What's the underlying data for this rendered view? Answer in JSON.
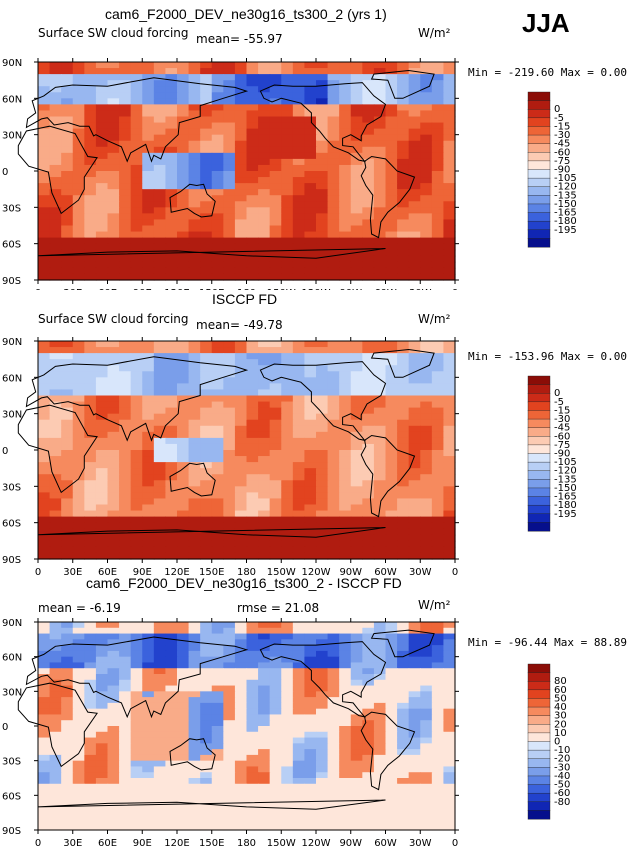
{
  "season": "JJA",
  "colors": {
    "warm": [
      "#8b0d07",
      "#b01c10",
      "#cc2b18",
      "#e2431f",
      "#ee6537",
      "#f68a5e",
      "#f9ab88",
      "#fccbb3",
      "#fee6da"
    ],
    "cool": [
      "#d8e6fb",
      "#b8cff5",
      "#98b7f0",
      "#7a9eea",
      "#5b83e5",
      "#3b62dd",
      "#2242cd",
      "#1026b4",
      "#060f8c"
    ],
    "land": "#000000",
    "ocean_warm_base": "#f3744a"
  },
  "panels": [
    {
      "title": "cam6_F2000_DEV_ne30g16_ts300_2 (yrs 1)",
      "left_text": "Surface SW cloud forcing",
      "center_text": "mean=  -55.97",
      "units": "W/m²",
      "minmax": "Min = -219.60 Max =    0.00",
      "colorbar_labels": [
        "0",
        "-5",
        "-15",
        "-30",
        "-45",
        "-60",
        "-75",
        "-90",
        "-105",
        "-120",
        "-135",
        "-150",
        "-165",
        "-180",
        "-195"
      ]
    },
    {
      "title": "ISCCP FD",
      "left_text": "Surface SW cloud forcing",
      "center_text": "mean=  -49.78",
      "units": "W/m²",
      "minmax": "Min = -153.96 Max =    0.00",
      "colorbar_labels": [
        "0",
        "-5",
        "-15",
        "-30",
        "-45",
        "-60",
        "-75",
        "-90",
        "-105",
        "-120",
        "-135",
        "-150",
        "-165",
        "-180",
        "-195"
      ]
    },
    {
      "title": "cam6_F2000_DEV_ne30g16_ts300_2 - ISCCP FD",
      "left_text": "mean =  -6.19",
      "center_text": "rmse =  21.08",
      "units": "W/m²",
      "minmax": "Min = -96.44 Max =  88.89",
      "colorbar_labels": [
        "80",
        "60",
        "50",
        "40",
        "30",
        "20",
        "10",
        "0",
        "-10",
        "-20",
        "-30",
        "-40",
        "-50",
        "-60",
        "-80"
      ]
    }
  ],
  "axes": {
    "lat_labels": [
      "90N",
      "60N",
      "30N",
      "0",
      "30S",
      "60S",
      "90S"
    ],
    "lon_labels": [
      "0",
      "30E",
      "60E",
      "90E",
      "120E",
      "150E",
      "180",
      "150W",
      "120W",
      "90W",
      "60W",
      "30W",
      "0"
    ]
  }
}
